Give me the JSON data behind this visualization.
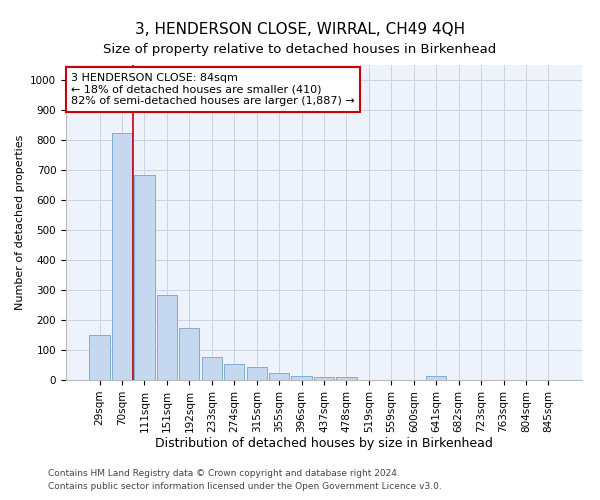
{
  "title": "3, HENDERSON CLOSE, WIRRAL, CH49 4QH",
  "subtitle": "Size of property relative to detached houses in Birkenhead",
  "xlabel": "Distribution of detached houses by size in Birkenhead",
  "ylabel": "Number of detached properties",
  "categories": [
    "29sqm",
    "70sqm",
    "111sqm",
    "151sqm",
    "192sqm",
    "233sqm",
    "274sqm",
    "315sqm",
    "355sqm",
    "396sqm",
    "437sqm",
    "478sqm",
    "519sqm",
    "559sqm",
    "600sqm",
    "641sqm",
    "682sqm",
    "723sqm",
    "763sqm",
    "804sqm",
    "845sqm"
  ],
  "values": [
    150,
    825,
    685,
    285,
    175,
    78,
    55,
    42,
    22,
    14,
    10,
    10,
    0,
    0,
    0,
    12,
    0,
    0,
    0,
    0,
    0
  ],
  "bar_color": "#c5d8ef",
  "bar_edge_color": "#7bafd4",
  "property_line_x": 1.5,
  "annotation_text": "3 HENDERSON CLOSE: 84sqm\n← 18% of detached houses are smaller (410)\n82% of semi-detached houses are larger (1,887) →",
  "annotation_box_color": "#ffffff",
  "annotation_box_edge_color": "#cc0000",
  "vline_color": "#cc0000",
  "grid_color": "#c8d4e8",
  "background_color": "#ffffff",
  "plot_bg_color": "#eef2fa",
  "footnote1": "Contains HM Land Registry data © Crown copyright and database right 2024.",
  "footnote2": "Contains public sector information licensed under the Open Government Licence v3.0.",
  "ylim": [
    0,
    1050
  ],
  "title_fontsize": 11,
  "subtitle_fontsize": 9.5,
  "xlabel_fontsize": 9,
  "ylabel_fontsize": 8,
  "tick_fontsize": 7.5,
  "footnote_fontsize": 6.5
}
